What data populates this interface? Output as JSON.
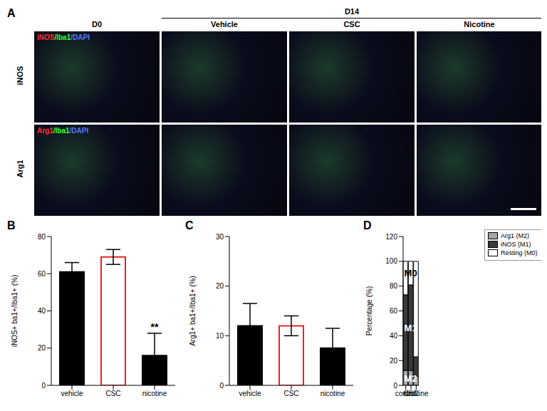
{
  "panel_a": {
    "panel_label": "A",
    "d0": "D0",
    "d14": {
      "label": "D14",
      "columns": [
        "Vehicle",
        "CSC",
        "Nicotine"
      ]
    },
    "rows": [
      {
        "label": "iNOS",
        "stain": [
          "iNOS",
          "/Iba1",
          "/DAPI"
        ]
      },
      {
        "label": "Arg1",
        "stain": [
          "Arg1",
          "/Iba1",
          "/DAPI"
        ]
      }
    ]
  },
  "chart_data": [
    {
      "panel_label": "B",
      "type": "bar",
      "y_label": "iNOS+ ba1+/Iba1+ (%)",
      "categories": [
        "vehicle",
        "CSC",
        "nicotine"
      ],
      "values": [
        61,
        69,
        16
      ],
      "errors": [
        5,
        4,
        12
      ],
      "colors": [
        "#000000",
        "#e8242b",
        "#000000"
      ],
      "ylim": [
        0,
        80
      ],
      "yticks": [
        0,
        20,
        40,
        60,
        80
      ],
      "annotations": [
        {
          "text": "**",
          "category": "nicotine"
        }
      ]
    },
    {
      "panel_label": "C",
      "type": "bar",
      "y_label": "Arg1+ ba1+/Iba1+ (%)",
      "categories": [
        "vehicle",
        "CSC",
        "nicotine"
      ],
      "values": [
        12,
        12,
        7.5
      ],
      "errors": [
        4.5,
        2,
        4
      ],
      "colors": [
        "#000000",
        "#e8242b",
        "#000000"
      ],
      "ylim": [
        0,
        30
      ],
      "yticks": [
        0,
        10,
        20,
        30
      ]
    },
    {
      "panel_label": "D",
      "type": "bar",
      "stacked": true,
      "y_label": "Percentage (%)",
      "categories": [
        "control",
        "CSC",
        "nicotine"
      ],
      "series": [
        {
          "name": "Arg1 (M2)",
          "color": "#a6a6a6",
          "values": [
            12,
            12,
            7
          ]
        },
        {
          "name": "iNOS (M1)",
          "color": "#3a3a3a",
          "values": [
            61,
            69,
            16
          ]
        },
        {
          "name": "Resting (M0)",
          "color": "#ffffff",
          "values": [
            27,
            19,
            77
          ]
        }
      ],
      "ylim": [
        0,
        120
      ],
      "yticks": [
        0,
        20,
        40,
        60,
        80,
        100,
        120
      ],
      "legend": "right",
      "annotations": [
        {
          "text": "M2",
          "category": "CSC",
          "series": "Arg1 (M2)"
        },
        {
          "text": "M1",
          "category": "CSC",
          "series": "iNOS (M1)"
        },
        {
          "text": "M0",
          "category": "CSC",
          "series": "Resting (M0)"
        }
      ]
    }
  ]
}
